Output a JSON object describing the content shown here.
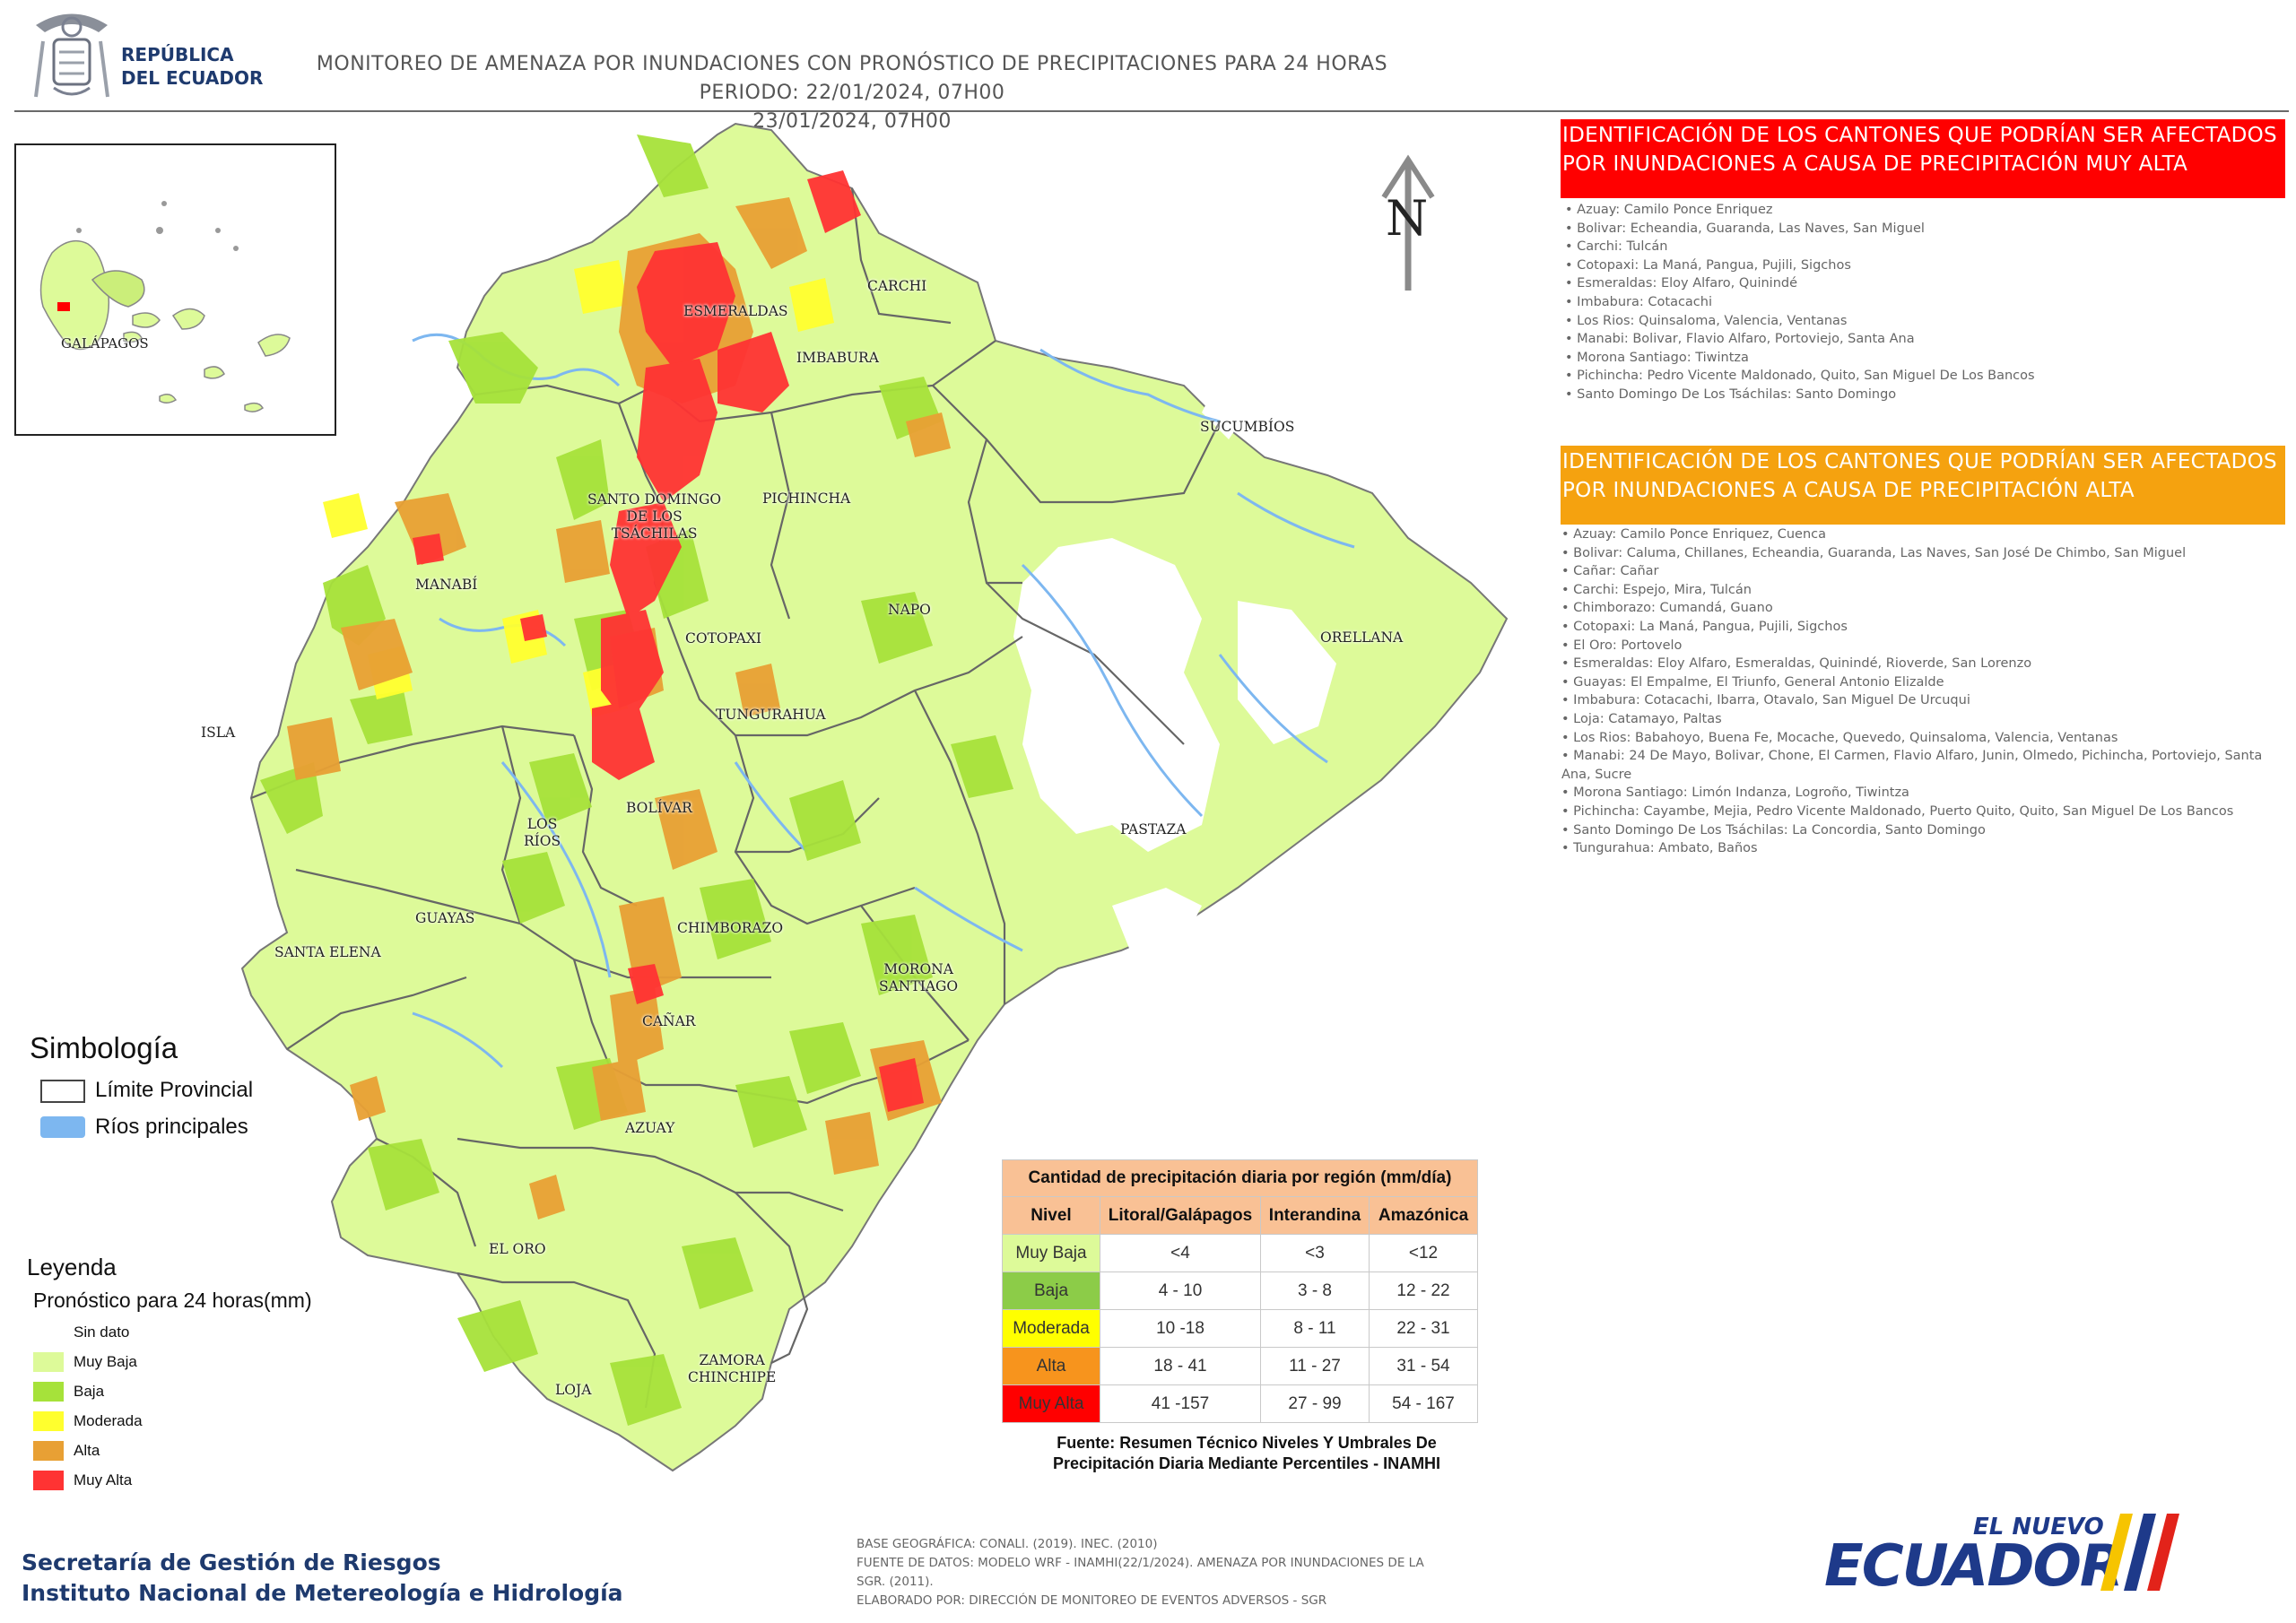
{
  "header": {
    "logo_text": [
      "REPÚBLICA",
      "DEL ECUADOR"
    ],
    "title_line1": "MONITOREO DE AMENAZA POR INUNDACIONES  CON PRONÓSTICO DE  PRECIPITACIONES PARA 24 HORAS  PERIODO: 22/01/2024, 07H00",
    "title_line2": "23/01/2024, 07H00"
  },
  "map": {
    "inset_label": "GALÁPAGOS",
    "north_label": "N",
    "province_labels": {
      "esmeraldas": "ESMERALDAS",
      "carchi": "CARCHI",
      "imbabura": "IMBABURA",
      "sucumbios": "SUCUMBÍOS",
      "santo_domingo": "SANTO DOMINGO\nDE LOS\nTSÁCHILAS",
      "pichincha": "PICHINCHA",
      "manabi": "MANABÍ",
      "napo": "NAPO",
      "orellana": "ORELLANA",
      "cotopaxi": "COTOPAXI",
      "isla": "ISLA",
      "tungurahua": "TUNGURAHUA",
      "bolivar": "BOLÍVAR",
      "los_rios": "LOS\nRÍOS",
      "pastaza": "PASTAZA",
      "guayas": "GUAYAS",
      "chimborazo": "CHIMBORAZO",
      "santa_elena": "SANTA ELENA",
      "morona": "MORONA\nSANTIAGO",
      "canar": "CAÑAR",
      "azuay": "AZUAY",
      "el_oro": "EL ORO",
      "zamora": "ZAMORA\nCHINCHIPE",
      "loja": "LOJA"
    }
  },
  "muy_alta": {
    "heading": "IDENTIFICACIÓN DE LOS CANTONES QUE PODRÍAN SER AFECTADOS POR INUNDACIONES  A CAUSA DE PRECIPITACIÓN MUY ALTA",
    "color": "#ff0000",
    "items": [
      "• Azuay: Camilo Ponce Enriquez",
      "• Bolivar: Echeandia, Guaranda, Las Naves, San Miguel",
      "• Carchi: Tulcán",
      "• Cotopaxi: La Maná, Pangua, Pujili, Sigchos",
      "• Esmeraldas: Eloy Alfaro, Quinindé",
      "• Imbabura: Cotacachi",
      "• Los Rios: Quinsaloma, Valencia, Ventanas",
      "• Manabi: Bolivar, Flavio Alfaro, Portoviejo, Santa Ana",
      "• Morona Santiago: Tiwintza",
      "• Pichincha: Pedro Vicente Maldonado, Quito, San Miguel De Los Bancos",
      "• Santo Domingo De Los Tsáchilas: Santo Domingo"
    ]
  },
  "alta": {
    "heading": "IDENTIFICACIÓN DE LOS CANTONES QUE  PODRÍAN SER AFECTADOS POR INUNDACIONES  A CAUSA DE PRECIPITACIÓN  ALTA",
    "color": "#f5a20f",
    "items": [
      "• Azuay: Camilo Ponce Enriquez, Cuenca",
      "• Bolivar: Caluma, Chillanes, Echeandia, Guaranda, Las Naves, San José De Chimbo, San Miguel",
      "• Cañar: Cañar",
      "• Carchi: Espejo, Mira, Tulcán",
      "• Chimborazo: Cumandá, Guano",
      "• Cotopaxi: La Maná, Pangua, Pujili, Sigchos",
      "• El Oro: Portovelo",
      "• Esmeraldas: Eloy Alfaro, Esmeraldas, Quinindé, Rioverde, San Lorenzo",
      "• Guayas: El Empalme, El Triunfo, General Antonio Elizalde",
      "• Imbabura: Cotacachi, Ibarra, Otavalo, San Miguel De Urcuqui",
      "• Loja: Catamayo, Paltas",
      "• Los Rios: Babahoyo, Buena Fe, Mocache, Quevedo, Quinsaloma, Valencia, Ventanas",
      "• Manabi: 24 De Mayo, Bolivar, Chone, El Carmen, Flavio Alfaro, Junin, Olmedo, Pichincha, Portoviejo, Santa",
      "Ana, Sucre",
      "• Morona Santiago: Limón Indanza, Logroño, Tiwintza",
      "• Pichincha: Cayambe, Mejia, Pedro Vicente Maldonado, Puerto Quito, Quito, San Miguel De Los Bancos",
      "• Santo Domingo De Los Tsáchilas: La Concordia, Santo Domingo",
      "• Tungurahua: Ambato, Baños"
    ]
  },
  "simbologia": {
    "title": "Simbología",
    "items": [
      {
        "label": "Límite Provincial",
        "color": "#ffffff"
      },
      {
        "label": "Ríos principales",
        "color": "#7db7f0"
      }
    ]
  },
  "leyenda": {
    "title": "Leyenda",
    "subtitle": "Pronóstico para 24 horas(mm)",
    "items": [
      {
        "label": "Sin dato",
        "color": "#ffffff"
      },
      {
        "label": "Muy Baja",
        "color": "#ddfa99"
      },
      {
        "label": "Baja",
        "color": "#a6e23a"
      },
      {
        "label": "Moderada",
        "color": "#ffff2e"
      },
      {
        "label": "Alta",
        "color": "#e8a034"
      },
      {
        "label": "Muy Alta",
        "color": "#ff3333"
      }
    ]
  },
  "table": {
    "title": "Cantidad de precipitación diaria por región (mm/día)",
    "columns": [
      "Nivel",
      "Litoral/Galápagos",
      "Interandina",
      "Amazónica"
    ],
    "rows": [
      {
        "nivel": "Muy Baja",
        "color": "#ddfa99",
        "litoral": "<4",
        "interandina": "<3",
        "amazonica": "<12"
      },
      {
        "nivel": "Baja",
        "color": "#8ccc48",
        "litoral": "4 - 10",
        "interandina": "3 - 8",
        "amazonica": "12 - 22"
      },
      {
        "nivel": "Moderada",
        "color": "#ffff00",
        "litoral": "10 -18",
        "interandina": "8 - 11",
        "amazonica": "22 - 31"
      },
      {
        "nivel": "Alta",
        "color": "#f7941d",
        "litoral": "18 - 41",
        "interandina": "11 - 27",
        "amazonica": "31 - 54"
      },
      {
        "nivel": "Muy Alta",
        "color": "#ff0000",
        "litoral": "41 -157",
        "interandina": "27 - 99",
        "amazonica": "54 - 167"
      }
    ],
    "source": "Fuente: Resumen Técnico Niveles Y Umbrales De Precipitación Diaria Mediante Percentiles - INAMHI"
  },
  "credits": {
    "line1": "BASE GEOGRÁFICA: CONALI. (2019). INEC. (2010)",
    "line2": "FUENTE DE DATOS: MODELO WRF - INAMHI(22/1/2024).  AMENAZA POR INUNDACIONES DE LA",
    "line3": "SGR. (2011).",
    "line4": "ELABORADO POR: DIRECCIÓN DE MONITOREO DE EVENTOS ADVERSOS - SGR"
  },
  "footer": {
    "org_line1": "Secretaría de Gestión de Riesgos",
    "org_line2": "Instituto Nacional de Metereología e Hidrología",
    "brand_top": "EL NUEVO",
    "brand_main": "ECUADOR"
  }
}
